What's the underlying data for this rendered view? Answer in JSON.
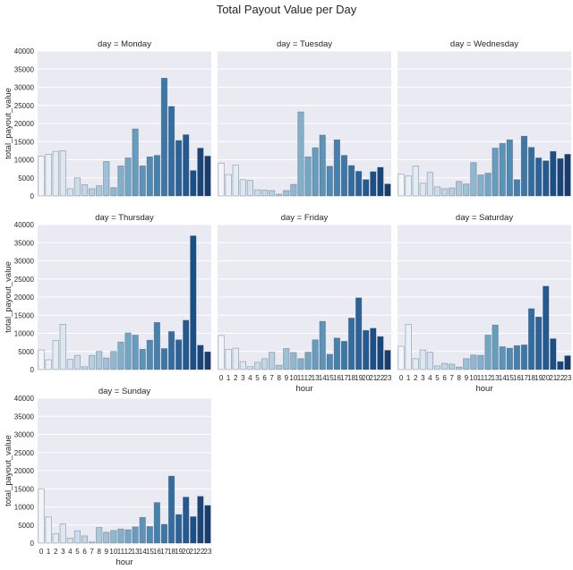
{
  "chart_data": {
    "type": "bar",
    "title": "Total Payout Value per Day",
    "xlabel": "hour",
    "ylabel": "total_payout_value",
    "categories": [
      "0",
      "1",
      "2",
      "3",
      "4",
      "5",
      "6",
      "7",
      "8",
      "9",
      "10",
      "11",
      "12",
      "13",
      "14",
      "15",
      "16",
      "17",
      "18",
      "19",
      "20",
      "21",
      "22",
      "23"
    ],
    "ylim": [
      0,
      40000
    ],
    "yticks": [
      0,
      5000,
      10000,
      15000,
      20000,
      25000,
      30000,
      35000,
      40000
    ],
    "grid": "horizontal",
    "palette": [
      "#f1f6fa",
      "#e9f1f8",
      "#e2ecf4",
      "#dbe7f1",
      "#d4e1ee",
      "#cddceb",
      "#c2d6e6",
      "#b7d0e0",
      "#abcadb",
      "#9dc1d6",
      "#8fb8d0",
      "#80b0cb",
      "#72a6c5",
      "#669dbf",
      "#5a94b9",
      "#4f8bb3",
      "#4581ae",
      "#3b77a7",
      "#326da1",
      "#2a6399",
      "#225a91",
      "#1a5088",
      "#18467a",
      "#163d6d"
    ],
    "colors": {
      "panel_background": "#eaeaf2",
      "gridline": "#ffffff",
      "text": "#262626"
    },
    "facets": [
      {
        "title": "day = Monday",
        "values": [
          11000,
          11500,
          12300,
          12500,
          2000,
          5000,
          3100,
          2000,
          2800,
          9500,
          2300,
          8300,
          10500,
          18500,
          8300,
          10800,
          11200,
          32500,
          24700,
          15300,
          16900,
          7000,
          13200,
          11000
        ]
      },
      {
        "title": "day = Tuesday",
        "values": [
          9000,
          5900,
          8500,
          4500,
          4300,
          1700,
          1600,
          1500,
          500,
          1500,
          3200,
          23200,
          10800,
          13300,
          16800,
          8200,
          15500,
          11200,
          8400,
          6800,
          4500,
          6700,
          7900,
          3300
        ]
      },
      {
        "title": "day = Wednesday",
        "values": [
          6000,
          5500,
          8300,
          3500,
          6500,
          2500,
          2000,
          2200,
          4000,
          3300,
          9200,
          5800,
          6300,
          13200,
          14500,
          15500,
          4500,
          16500,
          13400,
          10500,
          9700,
          12300,
          10300,
          11500
        ]
      },
      {
        "title": "day = Thursday",
        "values": [
          5400,
          2700,
          8000,
          12500,
          2800,
          3900,
          800,
          3900,
          5000,
          3200,
          5000,
          7600,
          10100,
          9500,
          5600,
          8100,
          13000,
          5800,
          10500,
          8200,
          13600,
          36900,
          6700,
          4900
        ]
      },
      {
        "title": "day = Friday",
        "values": [
          9400,
          5600,
          5900,
          2200,
          800,
          2000,
          3000,
          4800,
          1200,
          5800,
          4700,
          3000,
          4800,
          8200,
          13300,
          4200,
          8700,
          7800,
          14200,
          19800,
          10800,
          11400,
          9100,
          5300
        ]
      },
      {
        "title": "day = Saturday",
        "values": [
          6400,
          12500,
          3000,
          5400,
          4800,
          1000,
          1700,
          1500,
          700,
          3000,
          4000,
          3900,
          9500,
          12300,
          6300,
          5900,
          6600,
          6800,
          16800,
          14500,
          23000,
          8500,
          2200,
          3800
        ]
      },
      {
        "title": "day = Sunday",
        "values": [
          15000,
          7200,
          2600,
          5300,
          1400,
          3400,
          2000,
          300,
          4300,
          3000,
          3500,
          3900,
          3700,
          4500,
          7100,
          4600,
          11200,
          5200,
          18500,
          7900,
          12700,
          7300,
          12900,
          10400
        ]
      }
    ]
  }
}
